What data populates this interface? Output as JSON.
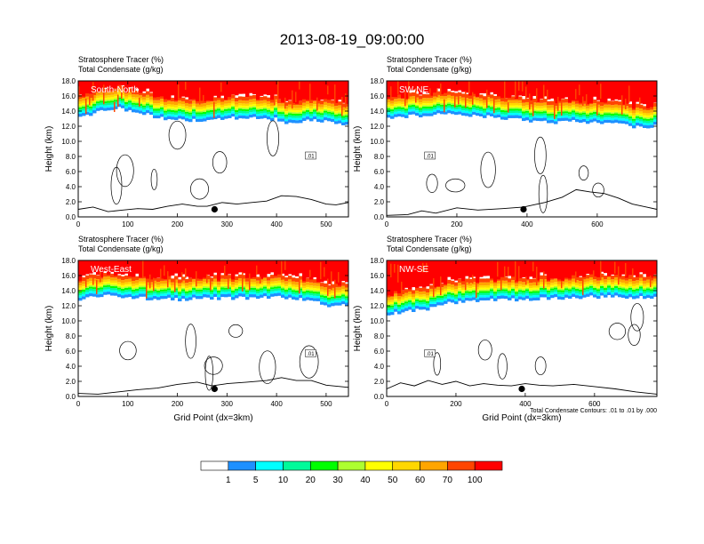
{
  "figure": {
    "title": "2013-08-19_09:00:00",
    "footnote": "Total Condensate Contours: .01 to .01 by .000",
    "colors": [
      "#ffffff",
      "#1e90ff",
      "#00ffff",
      "#00fa9a",
      "#00ff00",
      "#adff2f",
      "#ffff00",
      "#ffd700",
      "#ffa500",
      "#ff4500",
      "#ff0000"
    ]
  },
  "colorbar": {
    "label": "Stratosphere Tracer (%)",
    "levels": [
      "1",
      "5",
      "10",
      "20",
      "30",
      "40",
      "50",
      "60",
      "70",
      "100"
    ]
  },
  "chart_data": [
    {
      "type": "heatmap",
      "panel": "South-North",
      "title_line1": "Stratosphere Tracer   (%)",
      "title_line2": "Total Condensate   (g/kg)",
      "xlabel": "",
      "ylabel": "Height (km)",
      "xlim": [
        0,
        545
      ],
      "ylim": [
        0,
        18
      ],
      "xticks": [
        "0",
        "100",
        "200",
        "300",
        "400",
        "500"
      ],
      "xtick_values": [
        0,
        100,
        200,
        300,
        400,
        500
      ],
      "yticks": [
        "0.0",
        "2.0",
        "4.0",
        "6.0",
        "8.0",
        "10.0",
        "12.0",
        "14.0",
        "16.0",
        "18.0"
      ],
      "tropopause_km": [
        [
          0,
          13.6
        ],
        [
          40,
          14.2
        ],
        [
          80,
          14.8
        ],
        [
          120,
          14.2
        ],
        [
          160,
          13.6
        ],
        [
          200,
          13.2
        ],
        [
          250,
          13.2
        ],
        [
          300,
          13.5
        ],
        [
          350,
          13.4
        ],
        [
          400,
          13.3
        ],
        [
          430,
          12.6
        ],
        [
          470,
          13.2
        ],
        [
          520,
          12.8
        ],
        [
          545,
          12.5
        ]
      ],
      "contour_label": ".01",
      "terrain_km": [
        [
          0,
          1.0
        ],
        [
          30,
          1.3
        ],
        [
          60,
          0.7
        ],
        [
          90,
          0.9
        ],
        [
          120,
          1.1
        ],
        [
          150,
          1.0
        ],
        [
          180,
          1.4
        ],
        [
          210,
          1.7
        ],
        [
          240,
          1.4
        ],
        [
          260,
          1.4
        ],
        [
          290,
          1.9
        ],
        [
          320,
          1.7
        ],
        [
          350,
          1.9
        ],
        [
          380,
          2.1
        ],
        [
          410,
          2.8
        ],
        [
          440,
          2.7
        ],
        [
          470,
          2.3
        ],
        [
          500,
          1.7
        ],
        [
          520,
          1.6
        ],
        [
          545,
          1.9
        ]
      ],
      "marker": [
        275,
        1.0
      ]
    },
    {
      "type": "heatmap",
      "panel": "SW-NE",
      "title_line1": "Stratosphere Tracer   (%)",
      "title_line2": "Total Condensate   (g/kg)",
      "xlabel": "",
      "ylabel": "Height (km)",
      "xlim": [
        0,
        770
      ],
      "ylim": [
        0,
        18
      ],
      "xticks": [
        "0",
        "200",
        "400",
        "600"
      ],
      "xtick_values": [
        0,
        200,
        400,
        600
      ],
      "yticks": [
        "0.0",
        "2.0",
        "4.0",
        "6.0",
        "8.0",
        "10.0",
        "12.0",
        "14.0",
        "16.0",
        "18.0"
      ],
      "tropopause_km": [
        [
          0,
          13.5
        ],
        [
          100,
          13.8
        ],
        [
          160,
          14.2
        ],
        [
          250,
          13.8
        ],
        [
          350,
          13.4
        ],
        [
          450,
          12.9
        ],
        [
          550,
          13.0
        ],
        [
          650,
          12.7
        ],
        [
          700,
          12.3
        ],
        [
          770,
          12.4
        ]
      ],
      "contour_label": ".01",
      "terrain_km": [
        [
          0,
          0.2
        ],
        [
          60,
          0.3
        ],
        [
          100,
          0.8
        ],
        [
          140,
          0.5
        ],
        [
          200,
          1.2
        ],
        [
          260,
          0.9
        ],
        [
          330,
          1.1
        ],
        [
          390,
          1.3
        ],
        [
          450,
          1.9
        ],
        [
          500,
          2.6
        ],
        [
          540,
          3.6
        ],
        [
          580,
          3.3
        ],
        [
          620,
          3.1
        ],
        [
          660,
          2.5
        ],
        [
          700,
          1.7
        ],
        [
          740,
          1.3
        ],
        [
          770,
          1.0
        ]
      ],
      "marker": [
        390,
        1.0
      ]
    },
    {
      "type": "heatmap",
      "panel": "West-East",
      "title_line1": "Stratosphere Tracer   (%)",
      "title_line2": "Total Condensate   (g/kg)",
      "xlabel": "Grid Point (dx=3km)",
      "ylabel": "Height (km)",
      "xlim": [
        0,
        545
      ],
      "ylim": [
        0,
        18
      ],
      "xticks": [
        "0",
        "100",
        "200",
        "300",
        "400",
        "500"
      ],
      "xtick_values": [
        0,
        100,
        200,
        300,
        400,
        500
      ],
      "yticks": [
        "0.0",
        "2.0",
        "4.0",
        "6.0",
        "8.0",
        "10.0",
        "12.0",
        "14.0",
        "16.0",
        "18.0"
      ],
      "tropopause_km": [
        [
          0,
          13.2
        ],
        [
          60,
          13.8
        ],
        [
          120,
          13.4
        ],
        [
          200,
          13.2
        ],
        [
          300,
          13.4
        ],
        [
          400,
          13.5
        ],
        [
          470,
          13.1
        ],
        [
          520,
          12.2
        ],
        [
          545,
          12.6
        ]
      ],
      "contour_label": ".01",
      "terrain_km": [
        [
          0,
          0.4
        ],
        [
          40,
          0.3
        ],
        [
          80,
          0.6
        ],
        [
          120,
          0.9
        ],
        [
          160,
          1.1
        ],
        [
          200,
          1.6
        ],
        [
          240,
          1.9
        ],
        [
          270,
          1.4
        ],
        [
          300,
          1.7
        ],
        [
          340,
          1.9
        ],
        [
          380,
          2.1
        ],
        [
          410,
          2.5
        ],
        [
          440,
          2.1
        ],
        [
          470,
          2.1
        ],
        [
          500,
          1.5
        ],
        [
          545,
          1.2
        ]
      ],
      "marker": [
        275,
        1.0
      ]
    },
    {
      "type": "heatmap",
      "panel": "NW-SE",
      "title_line1": "Stratosphere Tracer   (%)",
      "title_line2": "Total Condensate   (g/kg)",
      "xlabel": "Grid Point (dx=3km)",
      "ylabel": "Height (km)",
      "xlim": [
        0,
        780
      ],
      "ylim": [
        0,
        18
      ],
      "xticks": [
        "0",
        "200",
        "400",
        "600"
      ],
      "xtick_values": [
        0,
        200,
        400,
        600
      ],
      "yticks": [
        "0.0",
        "2.0",
        "4.0",
        "6.0",
        "8.0",
        "10.0",
        "12.0",
        "14.0",
        "16.0",
        "18.0"
      ],
      "tropopause_km": [
        [
          0,
          11.2
        ],
        [
          60,
          11.6
        ],
        [
          120,
          12.0
        ],
        [
          180,
          12.8
        ],
        [
          250,
          13.0
        ],
        [
          350,
          13.2
        ],
        [
          450,
          13.3
        ],
        [
          550,
          13.5
        ],
        [
          650,
          13.6
        ],
        [
          720,
          13.4
        ],
        [
          780,
          13.6
        ]
      ],
      "contour_label": ".01",
      "terrain_km": [
        [
          0,
          1.0
        ],
        [
          40,
          1.8
        ],
        [
          80,
          1.4
        ],
        [
          120,
          2.1
        ],
        [
          160,
          1.6
        ],
        [
          200,
          2.0
        ],
        [
          240,
          1.4
        ],
        [
          280,
          1.7
        ],
        [
          320,
          1.5
        ],
        [
          360,
          1.4
        ],
        [
          400,
          1.7
        ],
        [
          440,
          1.5
        ],
        [
          480,
          1.4
        ],
        [
          540,
          1.6
        ],
        [
          600,
          1.3
        ],
        [
          660,
          1.0
        ],
        [
          720,
          0.6
        ],
        [
          780,
          0.3
        ]
      ],
      "marker": [
        390,
        1.0
      ]
    }
  ]
}
